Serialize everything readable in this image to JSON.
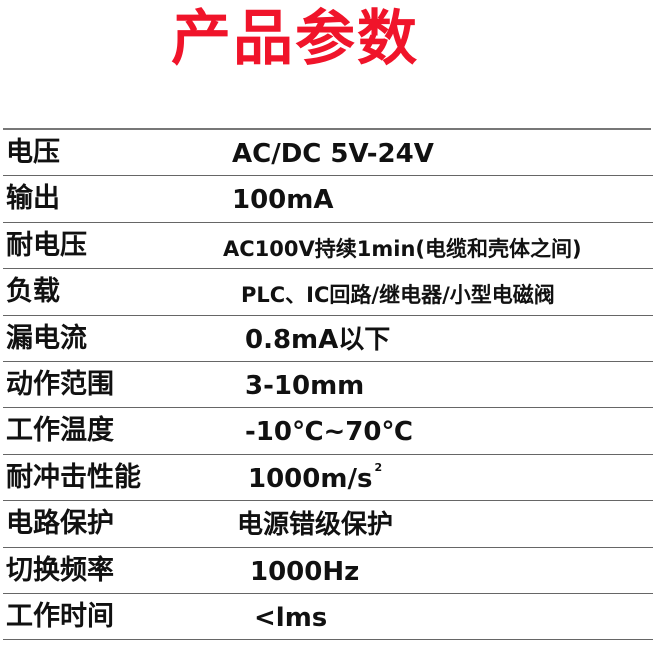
{
  "title": "产品参数",
  "title_color": "#f0142a",
  "specs": [
    {
      "label": "电压",
      "value": "AC/DC 5V-24V"
    },
    {
      "label": "输出",
      "value": "100mA"
    },
    {
      "label": "耐电压",
      "value": "AC100V持续1min(电缆和壳体之间)"
    },
    {
      "label": "负载",
      "value": "PLC、IC回路/继电器/小型电磁阀"
    },
    {
      "label": "漏电流",
      "value": "0.8mA以下"
    },
    {
      "label": "动作范围",
      "value": "3-10mm"
    },
    {
      "label": "工作温度",
      "value": "-10℃~70℃"
    },
    {
      "label": "耐冲击性能",
      "value": "1000m/s",
      "superscript": "2"
    },
    {
      "label": "电路保护",
      "value": "电源错级保护"
    },
    {
      "label": "切换频率",
      "value": "1000Hz"
    },
    {
      "label": "工作时间",
      "value": "<lms"
    }
  ]
}
